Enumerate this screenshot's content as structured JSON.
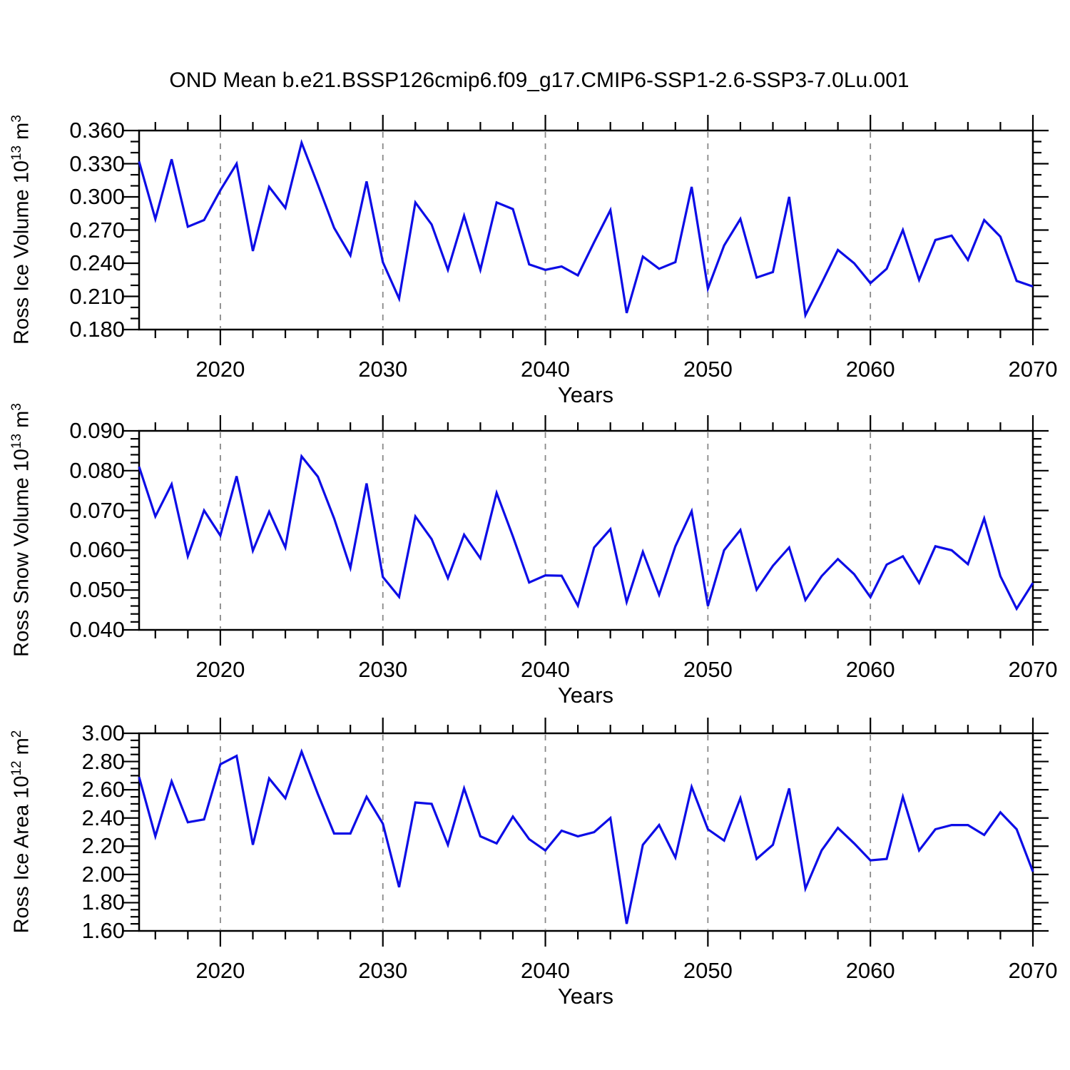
{
  "title": "OND Mean b.e21.BSSP126cmip6.f09_g17.CMIP6-SSP1-2.6-SSP3-7.0Lu.001",
  "colors": {
    "line": "#0d0de6",
    "grid": "#888888",
    "axis": "#000000"
  },
  "x_axis": {
    "label": "Years",
    "start": 2015,
    "end": 2070,
    "major_ticks": [
      2020,
      2030,
      2040,
      2050,
      2060,
      2070
    ],
    "minor_tick_step": 2,
    "gridline_years": [
      2020,
      2030,
      2040,
      2050,
      2060
    ]
  },
  "years": [
    2015,
    2016,
    2017,
    2018,
    2019,
    2020,
    2021,
    2022,
    2023,
    2024,
    2025,
    2026,
    2027,
    2028,
    2029,
    2030,
    2031,
    2032,
    2033,
    2034,
    2035,
    2036,
    2037,
    2038,
    2039,
    2040,
    2041,
    2042,
    2043,
    2044,
    2045,
    2046,
    2047,
    2048,
    2049,
    2050,
    2051,
    2052,
    2053,
    2054,
    2055,
    2056,
    2057,
    2058,
    2059,
    2060,
    2061,
    2062,
    2063,
    2064,
    2065,
    2066,
    2067,
    2068,
    2069,
    2070
  ],
  "chart_data": [
    {
      "type": "line",
      "name": "ross-ice-volume",
      "ylabel": {
        "main": "Ross Ice Volume 10",
        "sup": "13",
        "unit": " m",
        "unit_sup": "3"
      },
      "ylabel_plain": "Ross Ice Volume 10^13 m^3",
      "xlabel": "Years",
      "ylim": [
        0.18,
        0.36
      ],
      "y_major_step": 0.03,
      "y_minor_step": 0.01,
      "y_tick_labels": [
        "0.360",
        "0.330",
        "0.300",
        "0.270",
        "0.240",
        "0.210",
        "0.180"
      ],
      "values": [
        0.332,
        0.28,
        0.334,
        0.273,
        0.279,
        0.306,
        0.33,
        0.251,
        0.309,
        0.29,
        0.349,
        0.311,
        0.272,
        0.247,
        0.314,
        0.241,
        0.208,
        0.295,
        0.275,
        0.234,
        0.283,
        0.234,
        0.295,
        0.289,
        0.239,
        0.234,
        0.237,
        0.229,
        0.259,
        0.288,
        0.195,
        0.246,
        0.235,
        0.241,
        0.309,
        0.217,
        0.256,
        0.28,
        0.227,
        0.232,
        0.3,
        0.193,
        0.222,
        0.252,
        0.24,
        0.222,
        0.235,
        0.27,
        0.225,
        0.261,
        0.265,
        0.243,
        0.279,
        0.264,
        0.224,
        0.219
      ]
    },
    {
      "type": "line",
      "name": "ross-snow-volume",
      "ylabel": {
        "main": "Ross Snow Volume 10",
        "sup": "13",
        "unit": " m",
        "unit_sup": "3"
      },
      "ylabel_plain": "Ross Snow Volume 10^13 m^3",
      "xlabel": "Years",
      "ylim": [
        0.04,
        0.09
      ],
      "y_major_step": 0.01,
      "y_minor_step": 0.002,
      "y_tick_labels": [
        "0.090",
        "0.080",
        "0.070",
        "0.060",
        "0.050",
        "0.040"
      ],
      "values": [
        0.081,
        0.0685,
        0.0766,
        0.0585,
        0.07,
        0.0637,
        0.0786,
        0.0599,
        0.0697,
        0.0607,
        0.0836,
        0.0785,
        0.068,
        0.0556,
        0.0768,
        0.0533,
        0.0483,
        0.0685,
        0.0628,
        0.053,
        0.0639,
        0.058,
        0.0744,
        0.0635,
        0.0519,
        0.0537,
        0.0536,
        0.0461,
        0.0607,
        0.0653,
        0.047,
        0.0596,
        0.0488,
        0.061,
        0.0698,
        0.046,
        0.06,
        0.0651,
        0.0501,
        0.0561,
        0.0607,
        0.0475,
        0.0535,
        0.0578,
        0.054,
        0.0482,
        0.0564,
        0.0585,
        0.0518,
        0.061,
        0.06,
        0.0565,
        0.068,
        0.0535,
        0.0453,
        0.0518
      ]
    },
    {
      "type": "line",
      "name": "ross-ice-area",
      "ylabel": {
        "main": "Ross Ice Area 10",
        "sup": "12",
        "unit": " m",
        "unit_sup": "2"
      },
      "ylabel_plain": "Ross Ice Area 10^12 m^2",
      "xlabel": "Years",
      "ylim": [
        1.6,
        3.0
      ],
      "y_major_step": 0.2,
      "y_minor_step": 0.05,
      "y_tick_labels": [
        "3.00",
        "2.80",
        "2.60",
        "2.40",
        "2.20",
        "2.00",
        "1.80",
        "1.60"
      ],
      "values": [
        2.69,
        2.27,
        2.66,
        2.37,
        2.39,
        2.78,
        2.84,
        2.21,
        2.68,
        2.54,
        2.87,
        2.57,
        2.29,
        2.29,
        2.55,
        2.36,
        1.91,
        2.51,
        2.5,
        2.21,
        2.61,
        2.27,
        2.22,
        2.41,
        2.25,
        2.17,
        2.31,
        2.27,
        2.3,
        2.4,
        1.65,
        2.21,
        2.35,
        2.12,
        2.62,
        2.32,
        2.24,
        2.54,
        2.11,
        2.21,
        2.61,
        1.9,
        2.17,
        2.33,
        2.22,
        2.1,
        2.11,
        2.55,
        2.17,
        2.32,
        2.35,
        2.35,
        2.28,
        2.44,
        2.32,
        2.02
      ]
    }
  ]
}
